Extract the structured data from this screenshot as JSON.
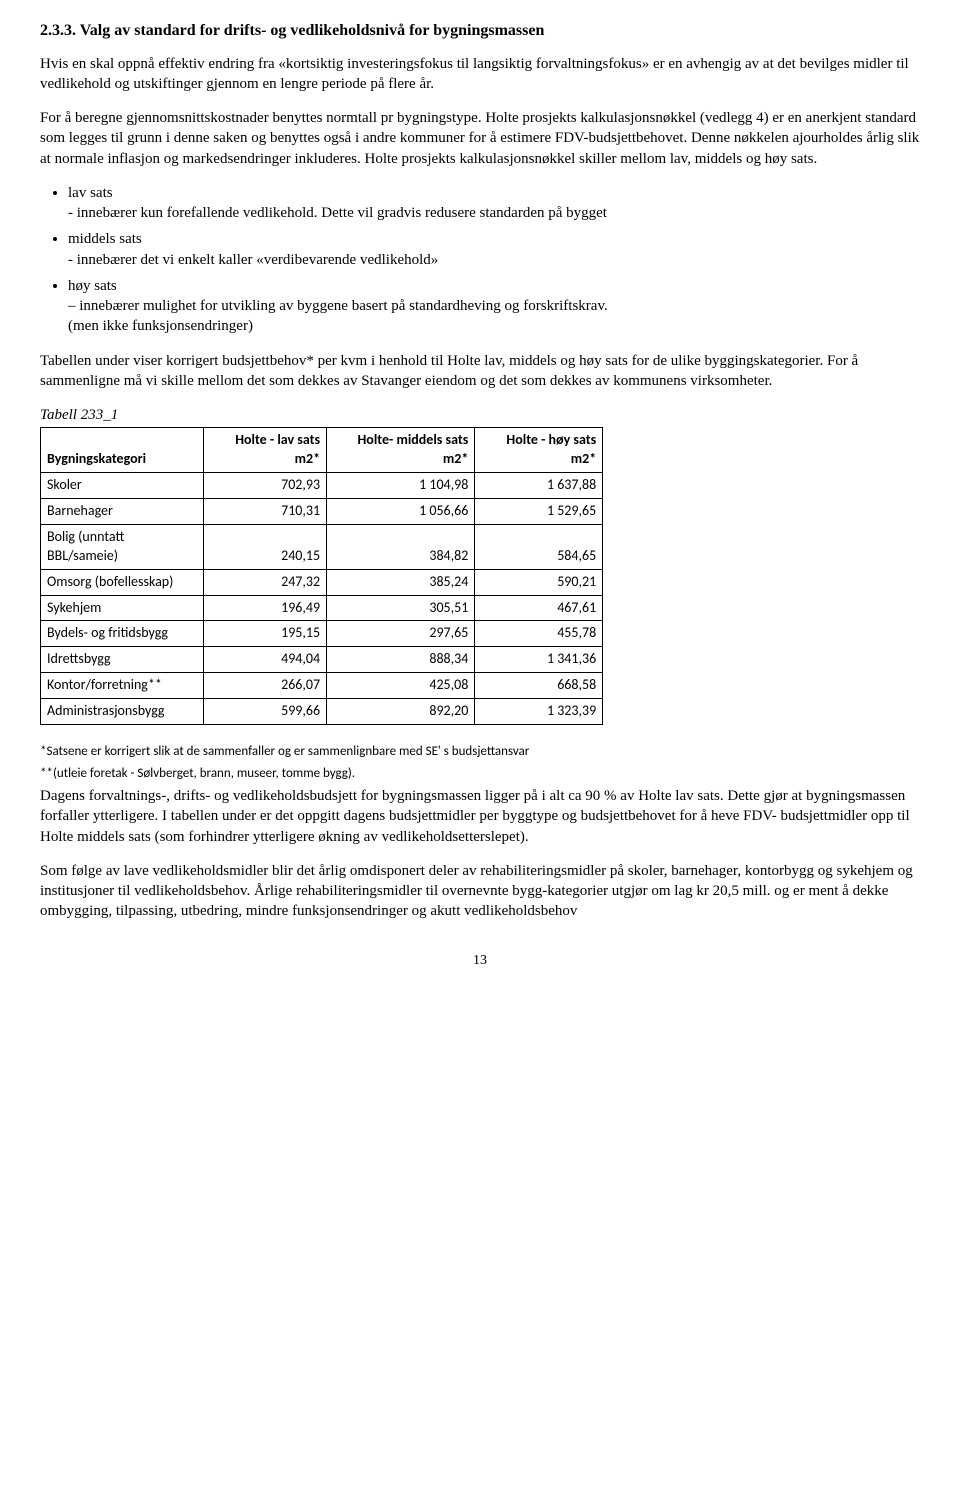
{
  "heading": "2.3.3. Valg av standard for drifts- og vedlikeholdsnivå for bygningsmassen",
  "p1": "Hvis en skal oppnå effektiv endring fra «kortsiktig investeringsfokus til langsiktig forvaltningsfokus» er en avhengig av at det bevilges midler til vedlikehold og utskiftinger gjennom en lengre periode på flere år.",
  "p2": "For å beregne gjennomsnittskostnader benyttes normtall pr bygningstype. Holte prosjekts kalkulasjonsnøkkel (vedlegg 4) er en anerkjent standard som legges til grunn i denne saken og benyttes også i andre kommuner for å estimere FDV-budsjettbehovet. Denne nøkkelen ajourholdes årlig slik at normale inflasjon og markedsendringer inkluderes. Holte prosjekts kalkulasjonsnøkkel skiller mellom lav, middels og høy sats.",
  "bullets": {
    "b1": "lav sats",
    "b1d": "- innebærer kun forefallende vedlikehold. Dette vil gradvis redusere standarden på bygget",
    "b2": "middels sats",
    "b2d": "- innebærer det vi enkelt kaller «verdibevarende vedlikehold»",
    "b3": "høy sats",
    "b3d": " – innebærer mulighet for utvikling av byggene basert på standardheving og forskriftskrav.",
    "b3e": "(men ikke funksjonsendringer)"
  },
  "p3": "Tabellen under viser korrigert budsjettbehov* per kvm i henhold til Holte lav, middels og høy sats for de ulike byggingskategorier. For å sammenligne må vi skille mellom det som dekkes av Stavanger eiendom og det som dekkes av kommunens virksomheter.",
  "table": {
    "caption": "Tabell 233_1",
    "headers": {
      "c0": "Bygningskategori",
      "c1": "Holte - lav sats m2*",
      "c2": "Holte- middels sats m2*",
      "c3": "Holte - høy sats m2*"
    },
    "rows": [
      {
        "cat": "Skoler",
        "v1": "702,93",
        "v2": "1 104,98",
        "v3": "1 637,88"
      },
      {
        "cat": "Barnehager",
        "v1": "710,31",
        "v2": "1 056,66",
        "v3": "1 529,65"
      },
      {
        "cat": "Bolig (unntatt BBL/sameie)",
        "v1": "240,15",
        "v2": "384,82",
        "v3": "584,65"
      },
      {
        "cat": "Omsorg (bofellesskap)",
        "v1": "247,32",
        "v2": "385,24",
        "v3": "590,21"
      },
      {
        "cat": "Sykehjem",
        "v1": "196,49",
        "v2": "305,51",
        "v3": "467,61"
      },
      {
        "cat": "Bydels- og fritidsbygg",
        "v1": "195,15",
        "v2": "297,65",
        "v3": "455,78"
      },
      {
        "cat": "Idrettsbygg",
        "v1": "494,04",
        "v2": "888,34",
        "v3": "1 341,36"
      },
      {
        "cat": "Kontor/forretning**",
        "v1": "266,07",
        "v2": "425,08",
        "v3": "668,58"
      },
      {
        "cat": "Administrasjonsbygg",
        "v1": "599,66",
        "v2": "892,20",
        "v3": "1 323,39"
      }
    ]
  },
  "fn1": "*Satsene er korrigert slik at de sammenfaller og er sammenlignbare med SE' s budsjettansvar",
  "fn2": "**(utleie foretak - Sølvberget, brann, museer, tomme bygg).",
  "p4": "Dagens forvaltnings-, drifts- og vedlikeholdsbudsjett for bygningsmassen ligger på i alt ca 90 % av Holte lav sats. Dette gjør at bygningsmassen forfaller ytterligere. I tabellen under er det oppgitt dagens budsjettmidler per byggtype og budsjettbehovet for å heve FDV- budsjettmidler opp til Holte middels sats (som forhindrer ytterligere økning av vedlikeholdsetterslepet).",
  "p5": "Som følge av lave vedlikeholdsmidler blir det årlig omdisponert deler av rehabiliteringsmidler på skoler, barnehager, kontorbygg og sykehjem og institusjoner til vedlikeholdsbehov. Årlige rehabiliteringsmidler til overnevnte bygg-kategorier utgjør om lag kr 20,5 mill. og er ment å dekke ombygging, tilpassing, utbedring, mindre funksjonsendringer og akutt vedlikeholdsbehov",
  "pagenum": "13"
}
